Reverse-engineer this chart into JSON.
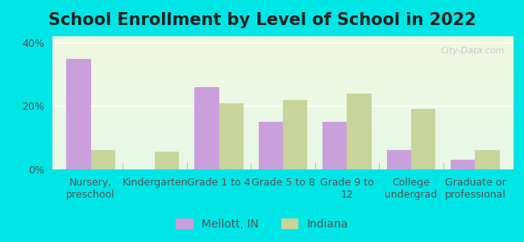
{
  "title": "School Enrollment by Level of School in 2022",
  "categories": [
    "Nursery,\npreschool",
    "Kindergarten",
    "Grade 1 to 4",
    "Grade 5 to 8",
    "Grade 9 to\n12",
    "College\nundergrad",
    "Graduate or\nprofessional"
  ],
  "mellott_values": [
    35,
    0,
    26,
    15,
    15,
    6,
    3
  ],
  "indiana_values": [
    6,
    5.5,
    21,
    22,
    24,
    19,
    6
  ],
  "mellott_color": "#c9a0dc",
  "indiana_color": "#c8d49a",
  "title_fontsize": 15,
  "tick_fontsize": 9,
  "legend_fontsize": 10,
  "ylim": [
    0,
    42
  ],
  "yticks": [
    0,
    20,
    40
  ],
  "ytick_labels": [
    "0%",
    "20%",
    "40%"
  ],
  "background_outer": "#00e5e5",
  "background_inner_top": "#f0f5e0",
  "background_inner_bottom": "#e8f8e8",
  "watermark": "City-Data.com",
  "bar_width": 0.38
}
